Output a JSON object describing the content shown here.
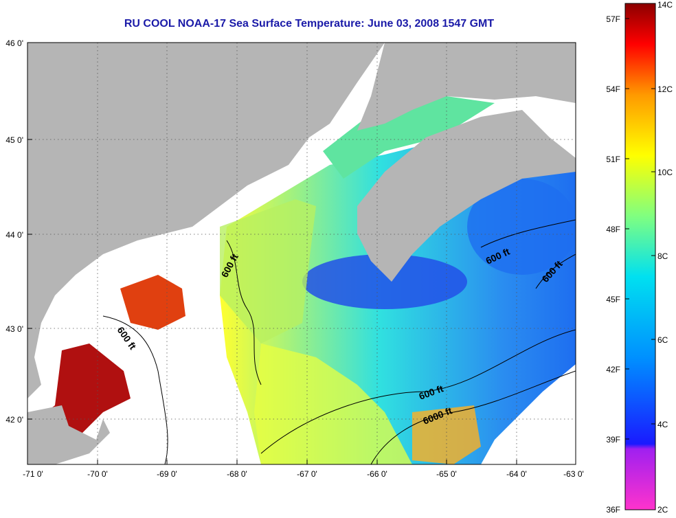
{
  "title": "RU COOL  NOAA-17  Sea Surface Temperature:  June 03, 2008 1547 GMT",
  "map": {
    "lon_ticks": [
      "-71 0'",
      "-70 0'",
      "-69 0'",
      "-68 0'",
      "-67 0'",
      "-66 0'",
      "-65 0'",
      "-64 0'",
      "-63 0'"
    ],
    "lat_ticks": [
      "46 0'",
      "45 0'",
      "44 0'",
      "43 0'",
      "42 0'"
    ],
    "contour_labels": [
      "600 ft",
      "600 ft",
      "600 ft",
      "600 ft",
      "600 ft",
      "6000 ft"
    ],
    "colors": {
      "land": "#b5b5b5",
      "cloud": "#ffffff",
      "contour": "#000000"
    }
  },
  "colorbar": {
    "fahrenheit_labels": [
      "57F",
      "54F",
      "51F",
      "48F",
      "45F",
      "42F",
      "39F",
      "36F"
    ],
    "celsius_labels": [
      "14C",
      "12C",
      "10C",
      "8C",
      "6C",
      "4C",
      "2C"
    ]
  }
}
